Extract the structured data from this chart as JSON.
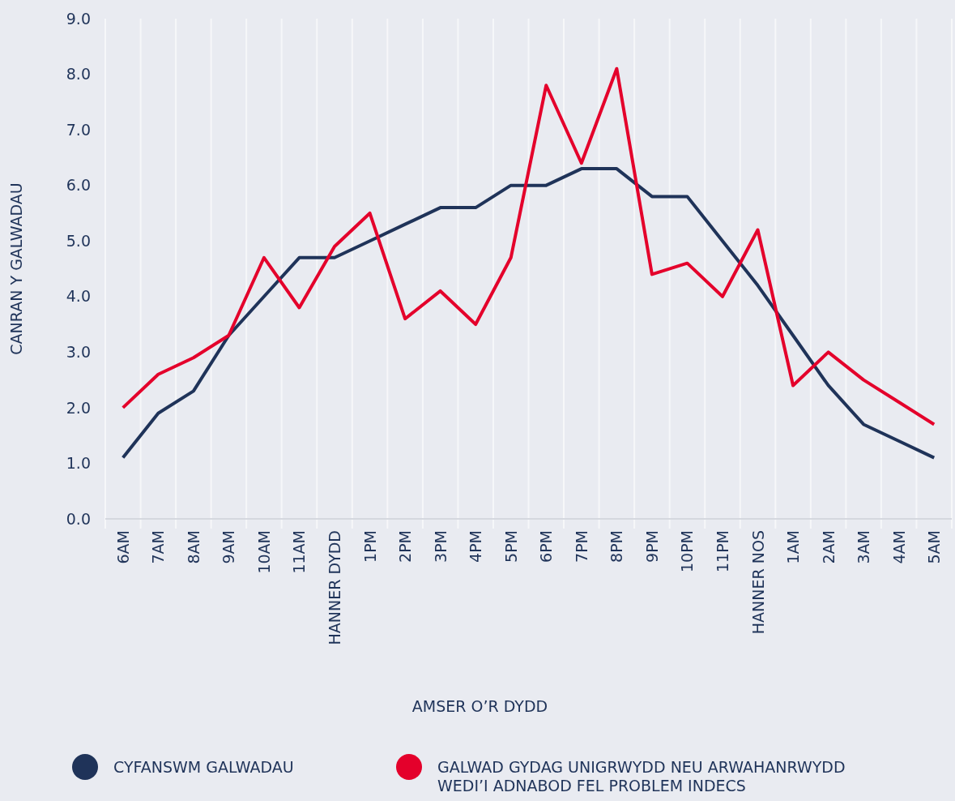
{
  "chart_data": {
    "type": "line",
    "xlabel": "AMSER O’R DYDD",
    "ylabel": "CANRAN Y GALWADAU",
    "categories": [
      "6AM",
      "7AM",
      "8AM",
      "9AM",
      "10AM",
      "11AM",
      "HANNER DYDD",
      "1PM",
      "2PM",
      "3PM",
      "4PM",
      "5PM",
      "6PM",
      "7PM",
      "8PM",
      "9PM",
      "10PM",
      "11PM",
      "HANNER NOS",
      "1AM",
      "2AM",
      "3AM",
      "4AM",
      "5AM"
    ],
    "series": [
      {
        "name": "CYFANSWM GALWADAU",
        "color": "#1f3359",
        "values": [
          1.1,
          1.9,
          2.3,
          3.3,
          4.0,
          4.7,
          4.7,
          5.0,
          5.3,
          5.6,
          5.6,
          6.0,
          6.0,
          6.3,
          6.3,
          5.8,
          5.8,
          5.0,
          4.2,
          3.3,
          2.4,
          1.7,
          1.4,
          1.1
        ]
      },
      {
        "name": "GALWAD GYDAG UNIGRWYDD NEU ARWAHANRWYDD WEDI’I ADNABOD FEL PROBLEM INDECS",
        "color": "#e4002b",
        "values": [
          2.0,
          2.6,
          2.9,
          3.3,
          4.7,
          3.8,
          4.9,
          5.5,
          3.6,
          4.1,
          3.5,
          4.7,
          7.8,
          6.4,
          8.1,
          4.4,
          4.6,
          4.0,
          5.2,
          2.4,
          3.0,
          2.5,
          2.1,
          1.7
        ]
      }
    ],
    "ylim": [
      0,
      9
    ],
    "yticks": [
      {
        "value": 0,
        "label": "0.0"
      },
      {
        "value": 1,
        "label": "1.0"
      },
      {
        "value": 2,
        "label": "2.0"
      },
      {
        "value": 3,
        "label": "3.0"
      },
      {
        "value": 4,
        "label": "4.0"
      },
      {
        "value": 5,
        "label": "5.0"
      },
      {
        "value": 6,
        "label": "6.0"
      },
      {
        "value": 7,
        "label": "7.0"
      },
      {
        "value": 8,
        "label": "8.0"
      },
      {
        "value": 9,
        "label": "9.0"
      }
    ],
    "grid": "x",
    "legend": "bottom",
    "marker": "none",
    "line_style": "solid"
  }
}
